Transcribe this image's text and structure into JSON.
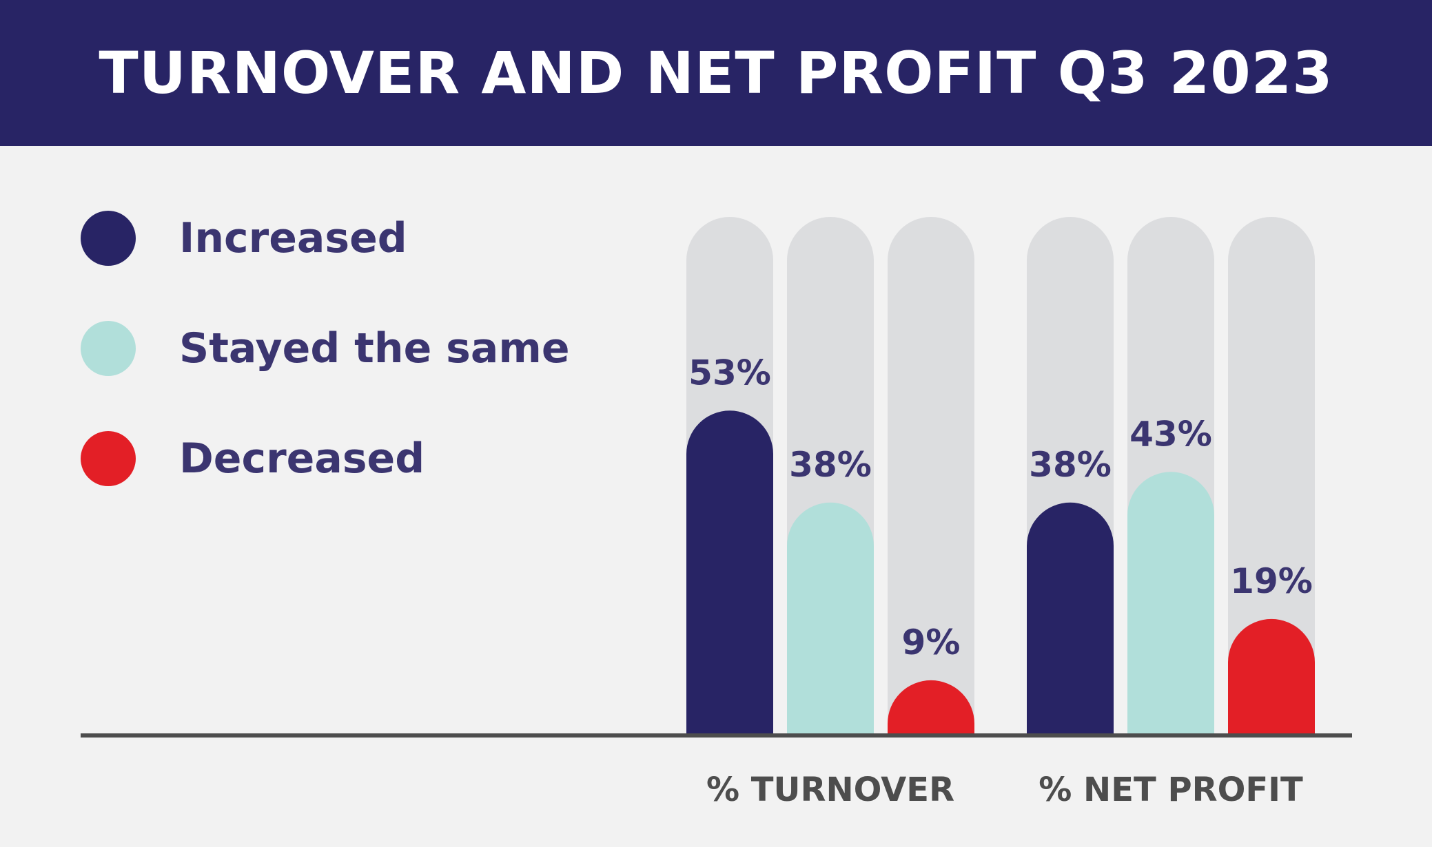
{
  "header": {
    "title": "TURNOVER AND NET PROFIT Q3 2023"
  },
  "legend": [
    {
      "label": "Increased",
      "color": "#282465"
    },
    {
      "label": "Stayed the same",
      "color": "#b1dfda"
    },
    {
      "label": "Decreased",
      "color": "#e31f26"
    }
  ],
  "colors": {
    "header_bg": "#282465",
    "background": "#f2f2f2",
    "track": "#dcdddf",
    "axis": "#4d4d4d",
    "label_text": "#3b3570"
  },
  "chart_data": {
    "type": "bar",
    "title": "TURNOVER AND NET PROFIT Q3 2023",
    "categories": [
      "% TURNOVER",
      "% NET PROFIT"
    ],
    "series": [
      {
        "name": "Increased",
        "values": [
          53,
          38
        ],
        "labels": [
          "53%",
          "38%"
        ],
        "color": "#282465"
      },
      {
        "name": "Stayed the same",
        "values": [
          38,
          43
        ],
        "labels": [
          "38%",
          "43%"
        ],
        "color": "#b1dfda"
      },
      {
        "name": "Decreased",
        "values": [
          9,
          19
        ],
        "labels": [
          "9%",
          "19%"
        ],
        "color": "#e31f26"
      }
    ],
    "ylim": [
      0,
      100
    ],
    "grid": false,
    "legend_position": "left"
  }
}
